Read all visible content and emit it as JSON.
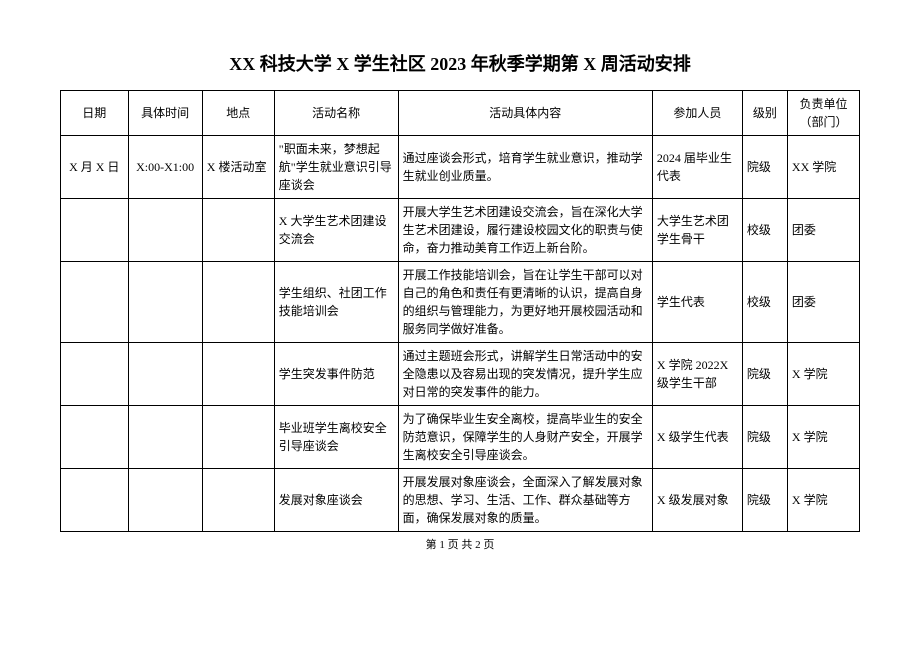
{
  "title": "XX 科技大学 X 学生社区 2023 年秋季学期第 X 周活动安排",
  "columns": {
    "date": "日期",
    "time": "具体时间",
    "location": "地点",
    "name": "活动名称",
    "desc": "活动具体内容",
    "participants": "参加人员",
    "level": "级别",
    "dept": "负责单位（部门）"
  },
  "rows": [
    {
      "date": "X 月 X 日",
      "time": "X:00-X1:00",
      "location": "X 楼活动室",
      "name": "\"职面未来，梦想起航\"学生就业意识引导座谈会",
      "desc": "通过座谈会形式，培育学生就业意识，推动学生就业创业质量。",
      "participants": "2024 届毕业生代表",
      "level": "院级",
      "dept": "XX 学院"
    },
    {
      "date": "",
      "time": "",
      "location": "",
      "name": "X 大学生艺术团建设交流会",
      "desc": "开展大学生艺术团建设交流会，旨在深化大学生艺术团建设，履行建设校园文化的职责与使命，奋力推动美育工作迈上新台阶。",
      "participants": "大学生艺术团学生骨干",
      "level": "校级",
      "dept": "团委"
    },
    {
      "date": "",
      "time": "",
      "location": "",
      "name": "学生组织、社团工作技能培训会",
      "desc": "开展工作技能培训会，旨在让学生干部可以对自己的角色和责任有更清晰的认识，提高自身的组织与管理能力，为更好地开展校园活动和服务同学做好准备。",
      "participants": "学生代表",
      "level": "校级",
      "dept": "团委"
    },
    {
      "date": "",
      "time": "",
      "location": "",
      "name": "学生突发事件防范",
      "desc": "通过主题班会形式，讲解学生日常活动中的安全隐患以及容易出现的突发情况，提升学生应对日常的突发事件的能力。",
      "participants": "X 学院 2022X 级学生干部",
      "level": "院级",
      "dept": "X 学院"
    },
    {
      "date": "",
      "time": "",
      "location": "",
      "name": "毕业班学生离校安全引导座谈会",
      "desc": "为了确保毕业生安全离校，提高毕业生的安全防范意识，保障学生的人身财产安全，开展学生离校安全引导座谈会。",
      "participants": "X 级学生代表",
      "level": "院级",
      "dept": "X 学院"
    },
    {
      "date": "",
      "time": "",
      "location": "",
      "name": "发展对象座谈会",
      "desc": "开展发展对象座谈会，全面深入了解发展对象的思想、学习、生活、工作、群众基础等方面，确保发展对象的质量。",
      "participants": "X 级发展对象",
      "level": "院级",
      "dept": "X 学院"
    }
  ],
  "footer": "第 1 页 共 2 页"
}
